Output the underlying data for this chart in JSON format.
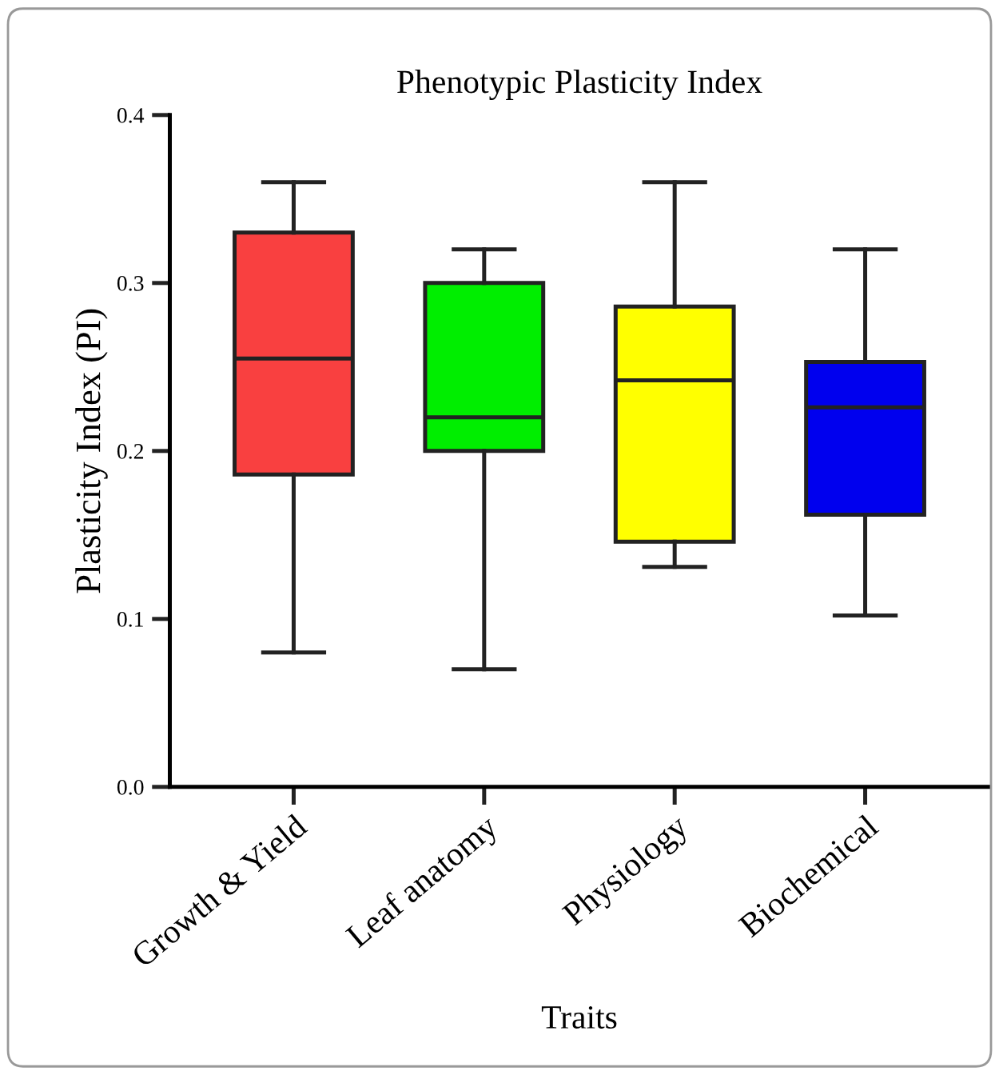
{
  "chart_data": {
    "type": "box",
    "title": "Phenotypic Plasticity Index",
    "xlabel": "Traits",
    "ylabel": "Plasticity Index (PI)",
    "categories": [
      "Growth & Yield",
      "Leaf anatomy",
      "Physiology",
      "Biochemical"
    ],
    "colors": [
      "#f94040",
      "#00ee00",
      "#ffff00",
      "#0000ee"
    ],
    "boxes": [
      {
        "low": 0.08,
        "q1": 0.186,
        "median": 0.255,
        "q3": 0.33,
        "high": 0.36
      },
      {
        "low": 0.07,
        "q1": 0.2,
        "median": 0.22,
        "q3": 0.3,
        "high": 0.32
      },
      {
        "low": 0.131,
        "q1": 0.146,
        "median": 0.242,
        "q3": 0.286,
        "high": 0.36
      },
      {
        "low": 0.102,
        "q1": 0.162,
        "median": 0.226,
        "q3": 0.253,
        "high": 0.32
      }
    ],
    "ylim": [
      0,
      0.4
    ],
    "yticks": [
      {
        "value": 0,
        "label": "0.0"
      },
      0.1,
      0.2,
      0.3,
      0.4
    ],
    "grid": false,
    "legend": false
  }
}
